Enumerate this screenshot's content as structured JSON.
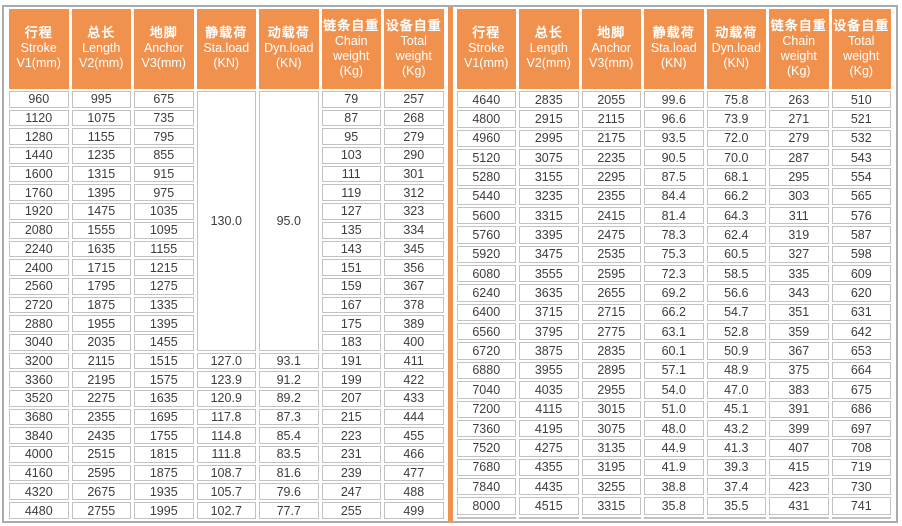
{
  "colors": {
    "header_bg": "#f0914e",
    "divider": "#f0914e",
    "cell_border": "#c2c2c2",
    "outer_border": "#ababab",
    "text": "#3d3d3d",
    "header_text": "#ffffff"
  },
  "columns": [
    {
      "key": "stroke",
      "zh": "行程",
      "en": "Stroke",
      "unit": "V1(mm)"
    },
    {
      "key": "length",
      "zh": "总长",
      "en": "Length",
      "unit": "V2(mm)"
    },
    {
      "key": "anchor",
      "zh": "地脚",
      "en": "Anchor",
      "unit": "V3(mm)"
    },
    {
      "key": "sta-load",
      "zh": "静载荷",
      "en": "Sta.load",
      "unit": "(KN)"
    },
    {
      "key": "dyn-load",
      "zh": "动载荷",
      "en": "Dyn.load",
      "unit": "(KN)"
    },
    {
      "key": "chain-weight",
      "zh": "链条自重",
      "en": "Chain weight",
      "unit": "(Kg)"
    },
    {
      "key": "total-weight",
      "zh": "设备自重",
      "en": "Total weight",
      "unit": "(Kg)"
    }
  ],
  "left_table": {
    "merged": {
      "columns": [
        3,
        4
      ],
      "values": [
        "130.0",
        "95.0"
      ],
      "row_span": 14
    },
    "rows": [
      [
        "960",
        "995",
        "675",
        null,
        null,
        "79",
        "257"
      ],
      [
        "1120",
        "1075",
        "735",
        null,
        null,
        "87",
        "268"
      ],
      [
        "1280",
        "1155",
        "795",
        null,
        null,
        "95",
        "279"
      ],
      [
        "1440",
        "1235",
        "855",
        null,
        null,
        "103",
        "290"
      ],
      [
        "1600",
        "1315",
        "915",
        null,
        null,
        "111",
        "301"
      ],
      [
        "1760",
        "1395",
        "975",
        null,
        null,
        "119",
        "312"
      ],
      [
        "1920",
        "1475",
        "1035",
        null,
        null,
        "127",
        "323"
      ],
      [
        "2080",
        "1555",
        "1095",
        null,
        null,
        "135",
        "334"
      ],
      [
        "2240",
        "1635",
        "1155",
        null,
        null,
        "143",
        "345"
      ],
      [
        "2400",
        "1715",
        "1215",
        null,
        null,
        "151",
        "356"
      ],
      [
        "2560",
        "1795",
        "1275",
        null,
        null,
        "159",
        "367"
      ],
      [
        "2720",
        "1875",
        "1335",
        null,
        null,
        "167",
        "378"
      ],
      [
        "2880",
        "1955",
        "1395",
        null,
        null,
        "175",
        "389"
      ],
      [
        "3040",
        "2035",
        "1455",
        null,
        null,
        "183",
        "400"
      ],
      [
        "3200",
        "2115",
        "1515",
        "127.0",
        "93.1",
        "191",
        "411"
      ],
      [
        "3360",
        "2195",
        "1575",
        "123.9",
        "91.2",
        "199",
        "422"
      ],
      [
        "3520",
        "2275",
        "1635",
        "120.9",
        "89.2",
        "207",
        "433"
      ],
      [
        "3680",
        "2355",
        "1695",
        "117.8",
        "87.3",
        "215",
        "444"
      ],
      [
        "3840",
        "2435",
        "1755",
        "114.8",
        "85.4",
        "223",
        "455"
      ],
      [
        "4000",
        "2515",
        "1815",
        "111.8",
        "83.5",
        "231",
        "466"
      ],
      [
        "4160",
        "2595",
        "1875",
        "108.7",
        "81.6",
        "239",
        "477"
      ],
      [
        "4320",
        "2675",
        "1935",
        "105.7",
        "79.6",
        "247",
        "488"
      ],
      [
        "4480",
        "2755",
        "1995",
        "102.7",
        "77.7",
        "255",
        "499"
      ]
    ]
  },
  "right_table": {
    "merged": null,
    "rows": [
      [
        "4640",
        "2835",
        "2055",
        "99.6",
        "75.8",
        "263",
        "510"
      ],
      [
        "4800",
        "2915",
        "2115",
        "96.6",
        "73.9",
        "271",
        "521"
      ],
      [
        "4960",
        "2995",
        "2175",
        "93.5",
        "72.0",
        "279",
        "532"
      ],
      [
        "5120",
        "3075",
        "2235",
        "90.5",
        "70.0",
        "287",
        "543"
      ],
      [
        "5280",
        "3155",
        "2295",
        "87.5",
        "68.1",
        "295",
        "554"
      ],
      [
        "5440",
        "3235",
        "2355",
        "84.4",
        "66.2",
        "303",
        "565"
      ],
      [
        "5600",
        "3315",
        "2415",
        "81.4",
        "64.3",
        "311",
        "576"
      ],
      [
        "5760",
        "3395",
        "2475",
        "78.3",
        "62.4",
        "319",
        "587"
      ],
      [
        "5920",
        "3475",
        "2535",
        "75.3",
        "60.5",
        "327",
        "598"
      ],
      [
        "6080",
        "3555",
        "2595",
        "72.3",
        "58.5",
        "335",
        "609"
      ],
      [
        "6240",
        "3635",
        "2655",
        "69.2",
        "56.6",
        "343",
        "620"
      ],
      [
        "6400",
        "3715",
        "2715",
        "66.2",
        "54.7",
        "351",
        "631"
      ],
      [
        "6560",
        "3795",
        "2775",
        "63.1",
        "52.8",
        "359",
        "642"
      ],
      [
        "6720",
        "3875",
        "2835",
        "60.1",
        "50.9",
        "367",
        "653"
      ],
      [
        "6880",
        "3955",
        "2895",
        "57.1",
        "48.9",
        "375",
        "664"
      ],
      [
        "7040",
        "4035",
        "2955",
        "54.0",
        "47.0",
        "383",
        "675"
      ],
      [
        "7200",
        "4115",
        "3015",
        "51.0",
        "45.1",
        "391",
        "686"
      ],
      [
        "7360",
        "4195",
        "3075",
        "48.0",
        "43.2",
        "399",
        "697"
      ],
      [
        "7520",
        "4275",
        "3135",
        "44.9",
        "41.3",
        "407",
        "708"
      ],
      [
        "7680",
        "4355",
        "3195",
        "41.9",
        "39.3",
        "415",
        "719"
      ],
      [
        "7840",
        "4435",
        "3255",
        "38.8",
        "37.4",
        "423",
        "730"
      ],
      [
        "8000",
        "4515",
        "3315",
        "35.8",
        "35.5",
        "431",
        "741"
      ],
      [
        "",
        "",
        "",
        "",
        "",
        "",
        ""
      ]
    ]
  }
}
